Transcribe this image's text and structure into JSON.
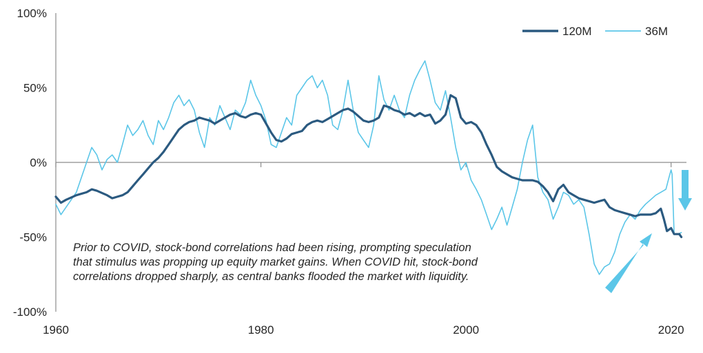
{
  "chart_data": {
    "type": "line",
    "title": "",
    "xlabel": "",
    "ylabel": "",
    "xlim": [
      1960,
      2021.5
    ],
    "ylim": [
      -100,
      100
    ],
    "x_ticks": [
      "1960",
      "1980",
      "2000",
      "2020"
    ],
    "y_ticks": [
      "100%",
      "50%",
      "0%",
      "-50%",
      "-100%"
    ],
    "grid": false,
    "legend_position": "top-right",
    "series": [
      {
        "name": "120M",
        "color": "#2b5a80",
        "x": [
          1960.0,
          1960.5,
          1961.0,
          1962.0,
          1963.0,
          1963.5,
          1964.0,
          1965.0,
          1965.5,
          1966.0,
          1966.5,
          1967.0,
          1967.5,
          1968.0,
          1968.5,
          1969.0,
          1969.5,
          1970.0,
          1970.5,
          1971.0,
          1971.5,
          1972.0,
          1972.5,
          1973.0,
          1973.5,
          1974.0,
          1974.5,
          1975.0,
          1975.5,
          1976.0,
          1976.5,
          1977.0,
          1977.5,
          1978.0,
          1978.5,
          1979.0,
          1979.5,
          1980.0,
          1980.5,
          1981.0,
          1981.5,
          1982.0,
          1982.5,
          1983.0,
          1983.5,
          1984.0,
          1984.5,
          1985.0,
          1985.5,
          1986.0,
          1986.5,
          1987.0,
          1987.5,
          1988.0,
          1988.5,
          1989.0,
          1989.5,
          1990.0,
          1990.5,
          1991.0,
          1991.5,
          1992.0,
          1992.5,
          1993.0,
          1993.5,
          1994.0,
          1994.5,
          1995.0,
          1995.5,
          1996.0,
          1996.5,
          1997.0,
          1997.5,
          1998.0,
          1998.5,
          1999.0,
          1999.5,
          2000.0,
          2000.5,
          2001.0,
          2001.5,
          2002.0,
          2002.5,
          2003.0,
          2003.5,
          2004.0,
          2004.5,
          2005.0,
          2005.5,
          2006.0,
          2006.5,
          2007.0,
          2007.5,
          2008.0,
          2008.5,
          2009.0,
          2009.5,
          2010.0,
          2010.5,
          2011.0,
          2011.5,
          2012.0,
          2012.5,
          2013.0,
          2013.5,
          2014.0,
          2014.5,
          2015.0,
          2015.5,
          2016.0,
          2016.5,
          2017.0,
          2017.5,
          2018.0,
          2018.5,
          2019.0,
          2019.3,
          2019.6,
          2020.0,
          2020.3,
          2020.5,
          2020.8,
          2021.0
        ],
        "values": [
          -23,
          -27,
          -25,
          -22,
          -20,
          -18,
          -19,
          -22,
          -24,
          -23,
          -22,
          -20,
          -16,
          -12,
          -8,
          -4,
          0,
          3,
          7,
          12,
          17,
          22,
          25,
          27,
          28,
          30,
          29,
          28,
          26,
          28,
          30,
          32,
          33,
          31,
          30,
          32,
          33,
          32,
          26,
          20,
          15,
          14,
          16,
          19,
          20,
          21,
          25,
          27,
          28,
          27,
          29,
          31,
          33,
          35,
          36,
          34,
          31,
          28,
          27,
          28,
          30,
          38,
          37,
          35,
          34,
          32,
          33,
          31,
          33,
          31,
          32,
          26,
          28,
          32,
          45,
          43,
          30,
          26,
          27,
          25,
          20,
          12,
          5,
          -3,
          -6,
          -8,
          -10,
          -11,
          -12,
          -12,
          -12,
          -13,
          -16,
          -20,
          -26,
          -18,
          -15,
          -20,
          -22,
          -24,
          -25,
          -26,
          -27,
          -26,
          -25,
          -30,
          -32,
          -33,
          -34,
          -35,
          -36,
          -35,
          -35,
          -35,
          -34,
          -31,
          -38,
          -46,
          -44,
          -48,
          -48,
          -48,
          -50
        ]
      },
      {
        "name": "36M",
        "color": "#5bc6e8",
        "x": [
          1960.0,
          1960.5,
          1961.0,
          1962.0,
          1963.0,
          1963.5,
          1964.0,
          1964.5,
          1965.0,
          1965.5,
          1966.0,
          1966.5,
          1967.0,
          1967.5,
          1968.0,
          1968.5,
          1969.0,
          1969.5,
          1970.0,
          1970.5,
          1971.0,
          1971.5,
          1972.0,
          1972.5,
          1973.0,
          1973.5,
          1974.0,
          1974.5,
          1975.0,
          1975.5,
          1976.0,
          1976.5,
          1977.0,
          1977.5,
          1978.0,
          1978.5,
          1979.0,
          1979.5,
          1980.0,
          1980.5,
          1981.0,
          1981.5,
          1982.0,
          1982.5,
          1983.0,
          1983.5,
          1984.0,
          1984.5,
          1985.0,
          1985.5,
          1986.0,
          1986.5,
          1987.0,
          1987.5,
          1988.0,
          1988.5,
          1989.0,
          1989.5,
          1990.0,
          1990.5,
          1991.0,
          1991.5,
          1992.0,
          1992.5,
          1993.0,
          1993.5,
          1994.0,
          1994.5,
          1995.0,
          1995.5,
          1996.0,
          1996.5,
          1997.0,
          1997.5,
          1998.0,
          1998.5,
          1999.0,
          1999.5,
          2000.0,
          2000.5,
          2001.0,
          2001.5,
          2002.0,
          2002.5,
          2003.0,
          2003.5,
          2004.0,
          2004.5,
          2005.0,
          2005.5,
          2006.0,
          2006.5,
          2007.0,
          2007.5,
          2008.0,
          2008.5,
          2009.0,
          2009.5,
          2010.0,
          2010.5,
          2011.0,
          2011.5,
          2012.0,
          2012.5,
          2013.0,
          2013.5,
          2014.0,
          2014.5,
          2015.0,
          2015.5,
          2016.0,
          2016.5,
          2017.0,
          2017.5,
          2018.0,
          2018.5,
          2019.0,
          2019.5,
          2019.8,
          2020.0,
          2020.1,
          2020.3,
          2020.6,
          2021.0
        ],
        "values": [
          -28,
          -35,
          -30,
          -20,
          0,
          10,
          5,
          -5,
          2,
          5,
          0,
          12,
          25,
          18,
          22,
          28,
          18,
          12,
          28,
          22,
          30,
          40,
          45,
          38,
          42,
          35,
          20,
          10,
          30,
          25,
          38,
          30,
          22,
          35,
          32,
          40,
          55,
          45,
          38,
          28,
          12,
          10,
          20,
          30,
          25,
          45,
          50,
          55,
          58,
          50,
          55,
          45,
          25,
          22,
          35,
          55,
          35,
          20,
          15,
          10,
          25,
          58,
          42,
          35,
          45,
          35,
          30,
          45,
          55,
          62,
          68,
          55,
          40,
          35,
          48,
          30,
          10,
          -5,
          0,
          -12,
          -18,
          -25,
          -35,
          -45,
          -38,
          -30,
          -42,
          -30,
          -18,
          0,
          15,
          25,
          -10,
          -20,
          -25,
          -38,
          -30,
          -20,
          -22,
          -28,
          -25,
          -30,
          -48,
          -68,
          -75,
          -70,
          -68,
          -60,
          -48,
          -40,
          -35,
          -38,
          -32,
          -28,
          -25,
          -22,
          -20,
          -18,
          -10,
          -5,
          -8,
          -48,
          -48,
          -47
        ]
      }
    ],
    "annotation_lines": [
      "Prior to COVID, stock-bond correlations had been rising, prompting speculation",
      "that stimulus was propping up equity market gains. When COVID hit, stock-bond",
      "correlations dropped sharply, as central banks flooded the market with liquidity."
    ],
    "arrows": [
      {
        "name": "rising-arrow",
        "direction": "up-right",
        "color": "#5bc6e8"
      },
      {
        "name": "drop-arrow",
        "direction": "down",
        "color": "#5bc6e8"
      }
    ]
  }
}
